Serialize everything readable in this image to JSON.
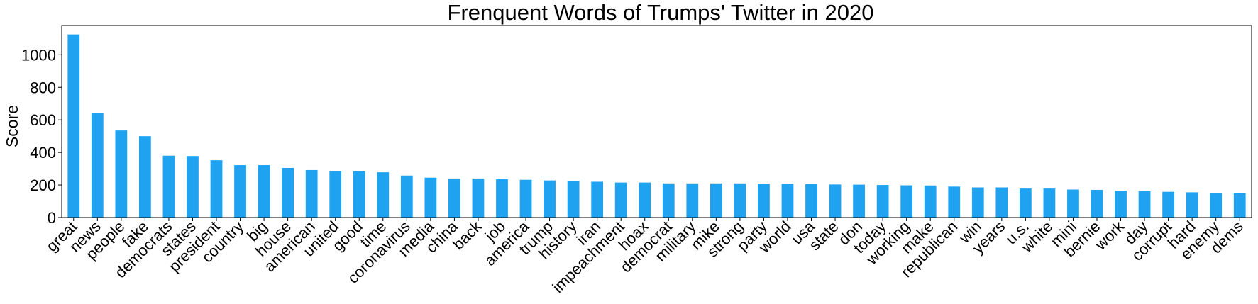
{
  "chart_data": {
    "type": "bar",
    "title": "Frenquent Words of Trumps' Twitter in 2020",
    "xlabel": "",
    "ylabel": "Score",
    "ylim": [
      0,
      1180
    ],
    "yticks": [
      0,
      200,
      400,
      600,
      800,
      1000
    ],
    "grid": false,
    "legend": "none",
    "bar_color": "#1fa2f0",
    "categories": [
      "great",
      "news",
      "people",
      "fake",
      "democrats",
      "states",
      "president",
      "country",
      "big",
      "house",
      "american",
      "united",
      "good",
      "time",
      "coronavirus",
      "media",
      "china",
      "back",
      "job",
      "america",
      "trump",
      "history",
      "iran",
      "impeachment",
      "hoax",
      "democrat",
      "military",
      "mike",
      "strong",
      "party",
      "world",
      "usa",
      "state",
      "don",
      "today",
      "working",
      "make",
      "republican",
      "win",
      "years",
      "u.s.",
      "white",
      "mini",
      "bernie",
      "work",
      "day",
      "corrupt",
      "hard",
      "enemy",
      "dems"
    ],
    "values": [
      1125,
      640,
      535,
      500,
      380,
      378,
      352,
      322,
      322,
      305,
      292,
      285,
      283,
      278,
      258,
      245,
      240,
      240,
      235,
      232,
      228,
      225,
      220,
      215,
      215,
      210,
      210,
      210,
      210,
      208,
      208,
      205,
      203,
      202,
      200,
      198,
      197,
      190,
      185,
      185,
      178,
      178,
      172,
      170,
      165,
      163,
      158,
      155,
      152,
      150
    ]
  }
}
